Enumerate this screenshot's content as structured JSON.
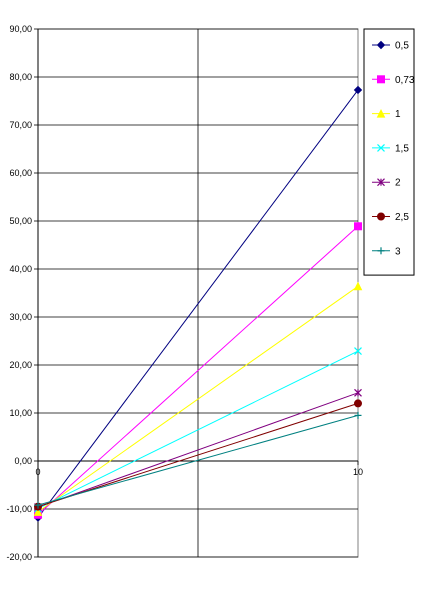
{
  "chart_data": {
    "type": "line",
    "title": "",
    "xlabel": "",
    "ylabel": "",
    "x": [
      0,
      10
    ],
    "xlim": [
      0,
      10
    ],
    "ylim": [
      -20,
      90
    ],
    "y_ticks": [
      "90,00",
      "80,00",
      "70,00",
      "60,00",
      "50,00",
      "40,00",
      "30,00",
      "20,00",
      "10,00",
      "0,00",
      "-10,00",
      "-20,00"
    ],
    "x_ticks": [
      "0",
      "10"
    ],
    "grid": "horizontal-and-vertical",
    "legend_position": "right",
    "series": [
      {
        "name": "0,5",
        "values": [
          -11.8,
          77.3
        ],
        "color": "#000080",
        "marker": "diamond"
      },
      {
        "name": "0,73",
        "values": [
          -11.2,
          48.9
        ],
        "color": "#ff00ff",
        "marker": "square"
      },
      {
        "name": "1",
        "values": [
          -10.6,
          36.4
        ],
        "color": "#ffff00",
        "marker": "triangle"
      },
      {
        "name": "1,5",
        "values": [
          -9.9,
          22.9
        ],
        "color": "#00ffff",
        "marker": "x"
      },
      {
        "name": "2",
        "values": [
          -9.6,
          14.2
        ],
        "color": "#800080",
        "marker": "star"
      },
      {
        "name": "2,5",
        "values": [
          -9.5,
          12.0
        ],
        "color": "#800000",
        "marker": "circle"
      },
      {
        "name": "3",
        "values": [
          -9.2,
          9.5
        ],
        "color": "#008080",
        "marker": "plus"
      }
    ]
  }
}
